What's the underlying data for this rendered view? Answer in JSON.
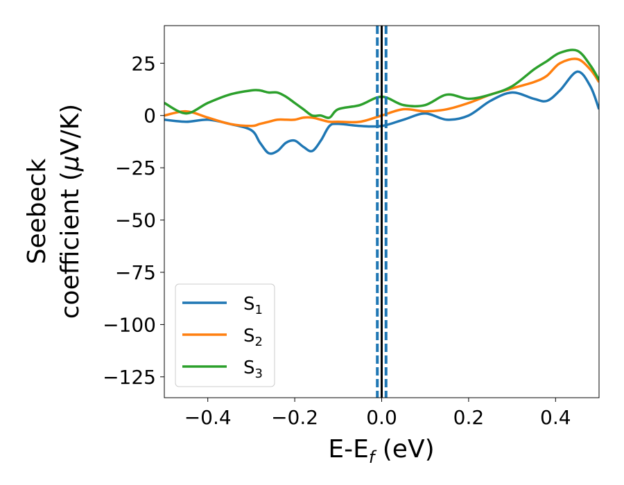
{
  "chart_data": {
    "type": "line",
    "xlabel_main": "E-E",
    "xlabel_sub": "f",
    "xlabel_tail": " (eV)",
    "ylabel_line1": "Seebeck",
    "ylabel_line2_main": "coefficient  (",
    "ylabel_line2_mu": "μ",
    "ylabel_line2_tail": "V/K)",
    "xlim": [
      -0.5,
      0.5
    ],
    "ylim": [
      -135,
      43
    ],
    "xticks": [
      -0.4,
      -0.2,
      0.0,
      0.2,
      0.4
    ],
    "xtick_labels": [
      "−0.4",
      "−0.2",
      "0.0",
      "0.2",
      "0.4"
    ],
    "yticks": [
      25,
      0,
      -25,
      -50,
      -75,
      -100,
      -125
    ],
    "ytick_labels": [
      "25",
      "0",
      "−25",
      "−50",
      "−75",
      "−100",
      "−125"
    ],
    "grid": false,
    "legend_position": "lower-left",
    "vlines": [
      {
        "x": 0.0,
        "style": "solid",
        "color": "#000000"
      },
      {
        "x": -0.01,
        "style": "dashed",
        "color": "#1f77b4"
      },
      {
        "x": 0.01,
        "style": "dashed",
        "color": "#1f77b4"
      }
    ],
    "x": [
      -0.5,
      -0.45,
      -0.4,
      -0.35,
      -0.3,
      -0.28,
      -0.26,
      -0.24,
      -0.22,
      -0.2,
      -0.18,
      -0.16,
      -0.14,
      -0.12,
      -0.1,
      -0.05,
      0.0,
      0.05,
      0.1,
      0.15,
      0.2,
      0.25,
      0.3,
      0.35,
      0.38,
      0.41,
      0.45,
      0.48,
      0.5
    ],
    "series": [
      {
        "name_main": "S",
        "name_sub": "1",
        "color": "#1f77b4",
        "values": [
          -2,
          -3,
          -2,
          -4,
          -7,
          -13,
          -18,
          -17,
          -13,
          -12,
          -15,
          -17,
          -12,
          -5,
          -4,
          -5,
          -5,
          -2,
          1,
          -2,
          0,
          7,
          11,
          8,
          7,
          12,
          21,
          14,
          3
        ]
      },
      {
        "name_main": "S",
        "name_sub": "2",
        "color": "#ff7f0e",
        "values": [
          0,
          2,
          -1,
          -4,
          -5,
          -4,
          -3,
          -2,
          -2,
          -2,
          -1,
          -1,
          -2,
          -3,
          -3,
          -3,
          0,
          3,
          2,
          3,
          6,
          10,
          13,
          16,
          19,
          25,
          27,
          22,
          16
        ]
      },
      {
        "name_main": "S",
        "name_sub": "3",
        "color": "#2ca02c",
        "values": [
          6,
          1,
          6,
          10,
          12,
          12,
          11,
          11,
          9,
          6,
          3,
          0,
          0,
          -1,
          3,
          5,
          9,
          5,
          5,
          10,
          8,
          10,
          14,
          22,
          26,
          30,
          31,
          24,
          17
        ]
      }
    ]
  }
}
